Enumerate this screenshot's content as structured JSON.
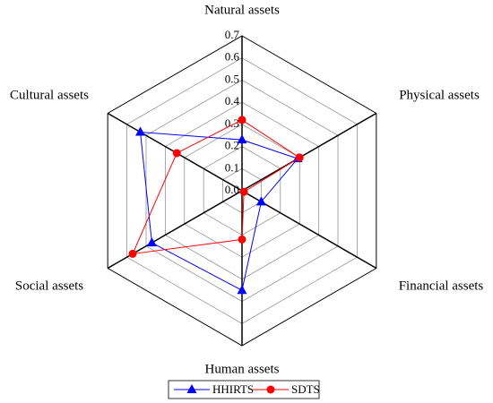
{
  "chart_data": {
    "type": "radar",
    "categories": [
      "Natural assets",
      "Physical assets",
      "Financial assets",
      "Human assets",
      "Social assets",
      "Cultural assets"
    ],
    "series": [
      {
        "name": "HHIRTS",
        "color": "#0000ff",
        "marker": "triangle",
        "values": [
          0.23,
          0.29,
          0.1,
          0.45,
          0.47,
          0.53
        ]
      },
      {
        "name": "SDTS",
        "color": "#ff0000",
        "marker": "circle",
        "values": [
          0.32,
          0.3,
          0.01,
          0.22,
          0.57,
          0.34
        ]
      }
    ],
    "ylim": [
      0,
      0.7
    ],
    "yticks": [
      {
        "value": 0,
        "label": "0.0"
      },
      0.1,
      0.2,
      0.3,
      0.4,
      0.5,
      0.6,
      0.7
    ],
    "grid": true,
    "legend": "bottom"
  }
}
